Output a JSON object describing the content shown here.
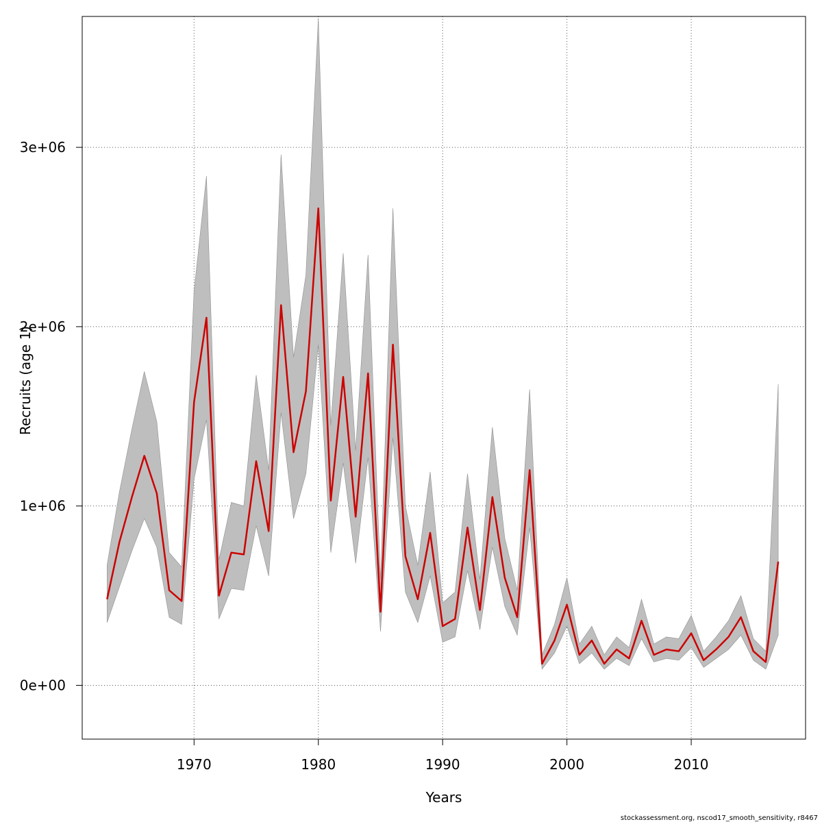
{
  "chart_data": {
    "type": "line",
    "xlabel": "Years",
    "ylabel": "Recruits (age 1)",
    "xlim": [
      1961,
      2019.2
    ],
    "ylim": [
      -300000,
      3730000
    ],
    "x_ticks": [
      1970,
      1980,
      1990,
      2000,
      2010
    ],
    "y_ticks": [
      0,
      1000000,
      2000000,
      3000000
    ],
    "y_tick_labels": [
      "0e+00",
      "1e+06",
      "2e+06",
      "3e+06"
    ],
    "grid": true,
    "series_color": "#cc0000",
    "band_color": "#bebebe",
    "years": [
      1963,
      1964,
      1965,
      1966,
      1967,
      1968,
      1969,
      1970,
      1971,
      1972,
      1973,
      1974,
      1975,
      1976,
      1977,
      1978,
      1979,
      1980,
      1981,
      1982,
      1983,
      1984,
      1985,
      1986,
      1987,
      1988,
      1989,
      1990,
      1991,
      1992,
      1993,
      1994,
      1995,
      1996,
      1997,
      1998,
      1999,
      2000,
      2001,
      2002,
      2003,
      2004,
      2005,
      2006,
      2007,
      2008,
      2009,
      2010,
      2011,
      2012,
      2013,
      2014,
      2015,
      2016,
      2017
    ],
    "estimate": [
      480000,
      800000,
      1050000,
      1280000,
      1070000,
      530000,
      470000,
      1580000,
      2050000,
      500000,
      740000,
      730000,
      1250000,
      860000,
      2120000,
      1300000,
      1640000,
      2660000,
      1030000,
      1720000,
      940000,
      1740000,
      410000,
      1900000,
      720000,
      480000,
      850000,
      330000,
      370000,
      880000,
      420000,
      1050000,
      600000,
      380000,
      1200000,
      120000,
      250000,
      450000,
      170000,
      250000,
      120000,
      200000,
      150000,
      360000,
      170000,
      200000,
      190000,
      290000,
      140000,
      200000,
      270000,
      380000,
      190000,
      130000,
      690000
    ],
    "lower": [
      350000,
      550000,
      750000,
      930000,
      770000,
      380000,
      340000,
      1150000,
      1480000,
      370000,
      540000,
      530000,
      890000,
      610000,
      1520000,
      930000,
      1180000,
      1900000,
      740000,
      1240000,
      680000,
      1270000,
      300000,
      1380000,
      520000,
      350000,
      610000,
      240000,
      270000,
      640000,
      310000,
      770000,
      440000,
      280000,
      880000,
      90000,
      180000,
      330000,
      120000,
      180000,
      90000,
      150000,
      110000,
      260000,
      130000,
      150000,
      140000,
      210000,
      100000,
      150000,
      200000,
      280000,
      140000,
      90000,
      280000
    ],
    "upper": [
      670000,
      1080000,
      1430000,
      1750000,
      1470000,
      740000,
      660000,
      2200000,
      2840000,
      700000,
      1020000,
      1000000,
      1730000,
      1200000,
      2960000,
      1830000,
      2290000,
      3720000,
      1450000,
      2410000,
      1310000,
      2400000,
      590000,
      2660000,
      1000000,
      670000,
      1190000,
      460000,
      520000,
      1180000,
      590000,
      1440000,
      820000,
      530000,
      1650000,
      170000,
      340000,
      600000,
      230000,
      330000,
      170000,
      270000,
      210000,
      480000,
      230000,
      270000,
      260000,
      390000,
      190000,
      270000,
      360000,
      500000,
      260000,
      190000,
      1680000
    ]
  },
  "footer": "stockassessment.org, nscod17_smooth_sensitivity, r8467"
}
